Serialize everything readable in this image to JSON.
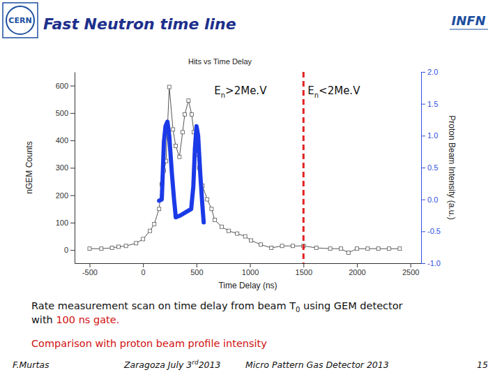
{
  "slide": {
    "title": "Fast Neutron time line",
    "logos": [
      "CERN",
      "INFN"
    ],
    "captions": [
      [
        {
          "text": "Rate measurement scan on time delay from beam T"
        },
        {
          "text": "0",
          "sub": true
        },
        {
          "text": " using GEM detector"
        }
      ],
      [
        {
          "text": "with "
        },
        {
          "text": "100 ns gate.",
          "color": "#d01010"
        }
      ],
      [],
      [
        {
          "text": "Comparison with proton beam profile intensity",
          "color": "#d01010"
        }
      ]
    ],
    "footer": {
      "author": "F.Murtas",
      "place": [
        {
          "text": "Zaragoza July 3"
        },
        {
          "text": "rd",
          "sup": true
        },
        {
          "text": "2013"
        }
      ],
      "event": "Micro Pattern Gas Detector 2013",
      "page": "15"
    }
  },
  "chart_data": {
    "type": "line",
    "title": "Hits vs Time Delay",
    "x_label": "Time Delay (ns)",
    "y_label": "nGEM Counts",
    "y2_label": "Proton Beam Intensity (a.u.)",
    "xlim": [
      -640,
      2600
    ],
    "xticks": [
      -500,
      0,
      500,
      1000,
      1500,
      2000,
      2500
    ],
    "ylim": [
      -48,
      650
    ],
    "yticks": [
      0,
      100,
      200,
      300,
      400,
      500,
      600
    ],
    "y2lim": [
      -1,
      2
    ],
    "y2ticks": [
      {
        "value": 2,
        "label": "2.0"
      },
      {
        "value": 1.5,
        "label": "1.5"
      },
      {
        "value": 1,
        "label": "1.0"
      },
      {
        "value": 0.5,
        "label": "0.5"
      },
      {
        "value": 0,
        "label": "0.0"
      },
      {
        "value": -0.5,
        "label": "-0.5"
      },
      {
        "value": -1,
        "label": "-1.0"
      }
    ],
    "grid": false,
    "series": [
      {
        "color": "#555555",
        "marker": "square",
        "line_style": "solid",
        "x": [
          -500,
          -390,
          -290,
          -230,
          -160,
          -65,
          0,
          65,
          105,
          150,
          175,
          195,
          215,
          245,
          280,
          305,
          340,
          370,
          390,
          425,
          455,
          475,
          505,
          525,
          555,
          600,
          640,
          670,
          735,
          800,
          880,
          955,
          1010,
          1100,
          1200,
          1300,
          1400,
          1500,
          1620,
          1750,
          1850,
          1920,
          2000,
          2100,
          2200,
          2300,
          2400
        ],
        "values": [
          5,
          5,
          8,
          12,
          15,
          25,
          40,
          70,
          95,
          150,
          240,
          290,
          325,
          595,
          440,
          380,
          340,
          430,
          495,
          545,
          495,
          430,
          350,
          300,
          235,
          185,
          150,
          110,
          85,
          70,
          60,
          50,
          35,
          20,
          8,
          15,
          15,
          15,
          8,
          5,
          5,
          -10,
          5,
          5,
          5,
          5,
          5
        ]
      },
      {
        "color": "#1a3ae8",
        "marker": "none",
        "line_style": "solid",
        "axis": "y2",
        "x": [
          150,
          175,
          182,
          195,
          210,
          228,
          245,
          270,
          290,
          306,
          350,
          400,
          450,
          470,
          485,
          500,
          515,
          535,
          555,
          567
        ],
        "values": [
          -0.02,
          0.0,
          0.3,
          0.9,
          1.15,
          1.22,
          1.0,
          0.4,
          0.0,
          -0.28,
          -0.25,
          -0.2,
          -0.15,
          0.2,
          0.8,
          1.15,
          1.0,
          0.4,
          -0.1,
          -0.36
        ]
      }
    ],
    "vlines": [
      {
        "x": 1500,
        "color": "#e02020",
        "line_style": "dashed"
      }
    ],
    "annotations": [
      {
        "parts": [
          "E",
          "n",
          ">2Me.V"
        ]
      },
      {
        "parts": [
          "E",
          "n",
          "<2Me.V"
        ]
      }
    ]
  }
}
